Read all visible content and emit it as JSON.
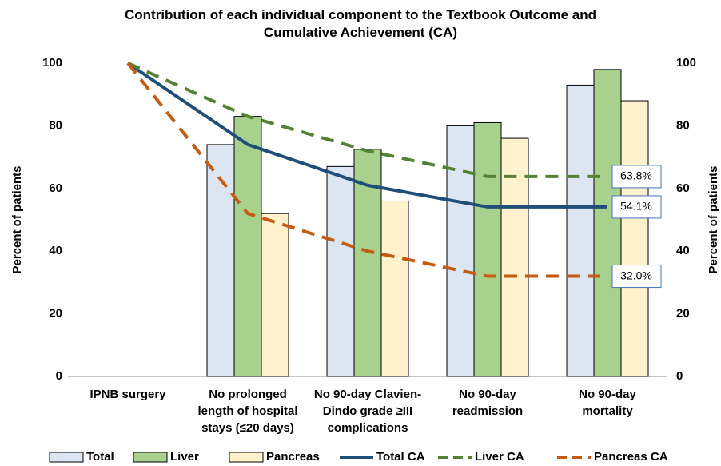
{
  "chart_data": {
    "type": "bar-line",
    "title": "Contribution of each individual component to the Textbook Outcome and\nCumulative Achievement (CA)",
    "y_label": "Percent of patients",
    "y2_label": "Percent of patients",
    "categories": [
      "IPNB surgery",
      "No prolonged\nlength of hospital\nstays (≤20 days)",
      "No 90-day Clavien-\nDindo grade ≥III\ncomplications",
      "No 90-day\nreadmission",
      "No 90-day\nmortality"
    ],
    "ylim": [
      0,
      100
    ],
    "yticks": [
      0,
      20,
      40,
      60,
      80,
      100
    ],
    "y2lim": [
      0,
      100
    ],
    "y2ticks": [
      0,
      20,
      40,
      60,
      80,
      100
    ],
    "grid": false,
    "series": [
      {
        "name": "Total",
        "type": "bar",
        "color": "#dce6f2",
        "values": [
          null,
          74,
          67,
          80,
          93
        ]
      },
      {
        "name": "Liver",
        "type": "bar",
        "color": "#a9d18e",
        "values": [
          null,
          83,
          72.5,
          81,
          98
        ]
      },
      {
        "name": "Pancreas",
        "type": "bar",
        "color": "#fff2cc",
        "values": [
          null,
          52,
          56,
          76,
          88
        ]
      },
      {
        "name": "Total CA",
        "type": "line",
        "dashed": false,
        "color": "#1f4e79",
        "values": [
          100,
          74,
          61,
          54.1,
          54.1
        ],
        "value_labels": [
          null,
          null,
          null,
          null,
          "54.1%"
        ]
      },
      {
        "name": "Liver CA",
        "type": "line",
        "dashed": true,
        "color": "#548235",
        "values": [
          100,
          83,
          72,
          63.8,
          63.8
        ],
        "value_labels": [
          null,
          null,
          null,
          null,
          "63.8%"
        ]
      },
      {
        "name": "Pancreas CA",
        "type": "line",
        "dashed": true,
        "color": "#c55a11",
        "values": [
          100,
          52,
          40,
          32,
          32
        ],
        "value_labels": [
          null,
          null,
          null,
          null,
          "32.0%"
        ]
      }
    ]
  }
}
